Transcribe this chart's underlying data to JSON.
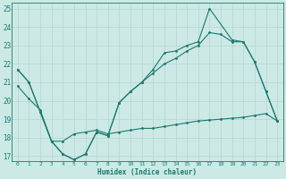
{
  "xlabel": "Humidex (Indice chaleur)",
  "background_color": "#cce9e5",
  "grid_color": "#b8d8d4",
  "line_color": "#1a7a6e",
  "xlim": [
    -0.5,
    23.5
  ],
  "ylim": [
    16.7,
    25.3
  ],
  "xticks": [
    0,
    1,
    2,
    3,
    4,
    5,
    6,
    7,
    8,
    9,
    10,
    11,
    12,
    13,
    14,
    15,
    16,
    17,
    18,
    19,
    20,
    21,
    22,
    23
  ],
  "yticks": [
    17,
    18,
    19,
    20,
    21,
    22,
    23,
    24,
    25
  ],
  "line1_x": [
    0,
    1,
    2,
    3,
    4,
    5,
    6,
    7,
    8,
    9,
    10,
    11,
    12,
    13,
    14,
    15,
    16,
    17,
    19,
    20,
    21,
    22,
    23
  ],
  "line1_y": [
    21.7,
    21.0,
    19.4,
    17.8,
    17.1,
    16.8,
    17.1,
    18.3,
    18.1,
    19.9,
    20.5,
    21.0,
    21.7,
    22.6,
    22.7,
    23.0,
    23.2,
    25.0,
    23.3,
    23.2,
    22.1,
    20.5,
    18.9
  ],
  "line2_x": [
    0,
    1,
    2,
    3,
    4,
    5,
    6,
    7,
    8,
    9,
    10,
    11,
    12,
    13,
    14,
    15,
    16,
    17,
    18,
    19,
    20,
    21,
    22,
    23
  ],
  "line2_y": [
    21.7,
    21.0,
    19.4,
    17.8,
    17.1,
    16.8,
    17.1,
    18.3,
    18.1,
    19.9,
    20.5,
    21.0,
    21.5,
    22.0,
    22.3,
    22.7,
    23.0,
    23.7,
    23.6,
    23.2,
    23.2,
    22.1,
    20.5,
    18.9
  ],
  "line3_x": [
    0,
    1,
    2,
    3,
    4,
    5,
    6,
    7,
    8,
    9,
    10,
    11,
    12,
    13,
    14,
    15,
    16,
    17,
    18,
    19,
    20,
    21,
    22,
    23
  ],
  "line3_y": [
    20.8,
    20.1,
    19.5,
    17.8,
    17.8,
    18.2,
    18.3,
    18.4,
    18.2,
    18.3,
    18.4,
    18.5,
    18.5,
    18.6,
    18.7,
    18.8,
    18.9,
    18.95,
    19.0,
    19.05,
    19.1,
    19.2,
    19.3,
    18.9
  ]
}
